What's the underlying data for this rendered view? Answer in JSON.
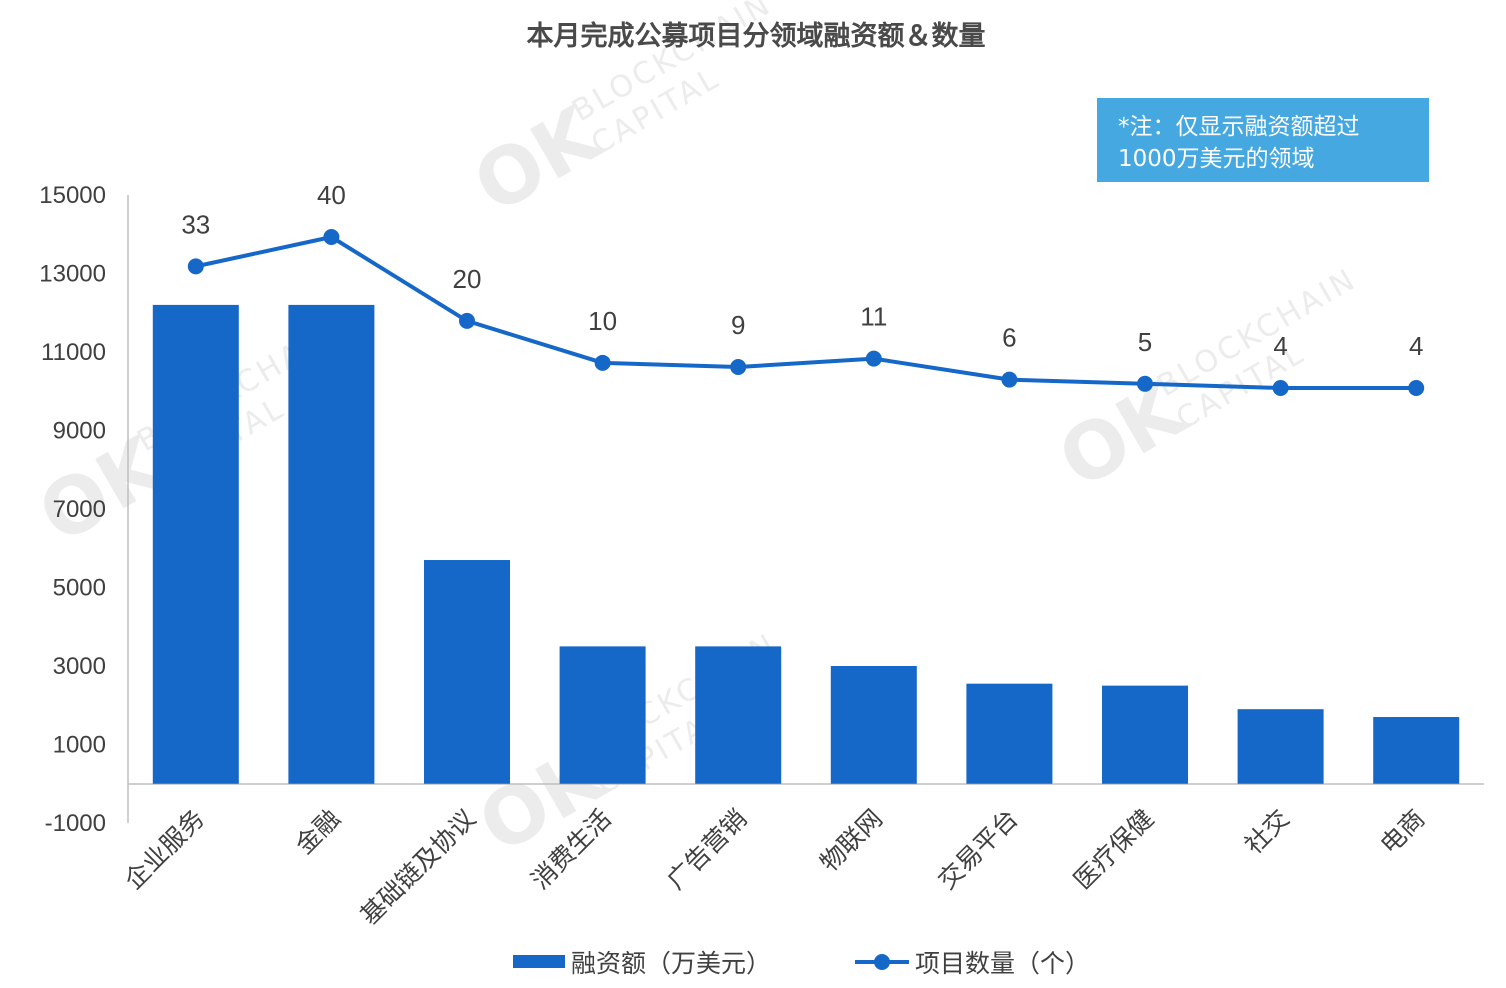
{
  "chart_data": {
    "type": "bar",
    "title": "本月完成公募项目分领域融资额＆数量",
    "categories": [
      "企业服务",
      "金融",
      "基础链及协议",
      "消费生活",
      "广告营销",
      "物联网",
      "交易平台",
      "医疗保健",
      "社交",
      "电商"
    ],
    "series": [
      {
        "name": "融资额（万美元）",
        "type": "bar",
        "color": "#1668c8",
        "values": [
          12200,
          12200,
          5700,
          3500,
          3500,
          3000,
          2550,
          2500,
          1900,
          1700
        ]
      },
      {
        "name": "项目数量（个）",
        "type": "line",
        "color": "#1668c8",
        "values": [
          33,
          40,
          20,
          10,
          9,
          11,
          6,
          5,
          4,
          4
        ]
      }
    ],
    "ylim": [
      -1000,
      15000
    ],
    "yticks": [
      "15000",
      "13000",
      "11000",
      "9000",
      "7000",
      "5000",
      "3000",
      "1000",
      "-1000"
    ],
    "grid": false,
    "legend_position": "bottom",
    "note": {
      "lines": [
        "*注：仅显示融资额超过",
        "1000万美元的领域"
      ],
      "color": "#46a8e0"
    },
    "watermark": {
      "big": "OK",
      "line1": "BLOCKCHAIN",
      "line2": "CAPITAL"
    }
  }
}
